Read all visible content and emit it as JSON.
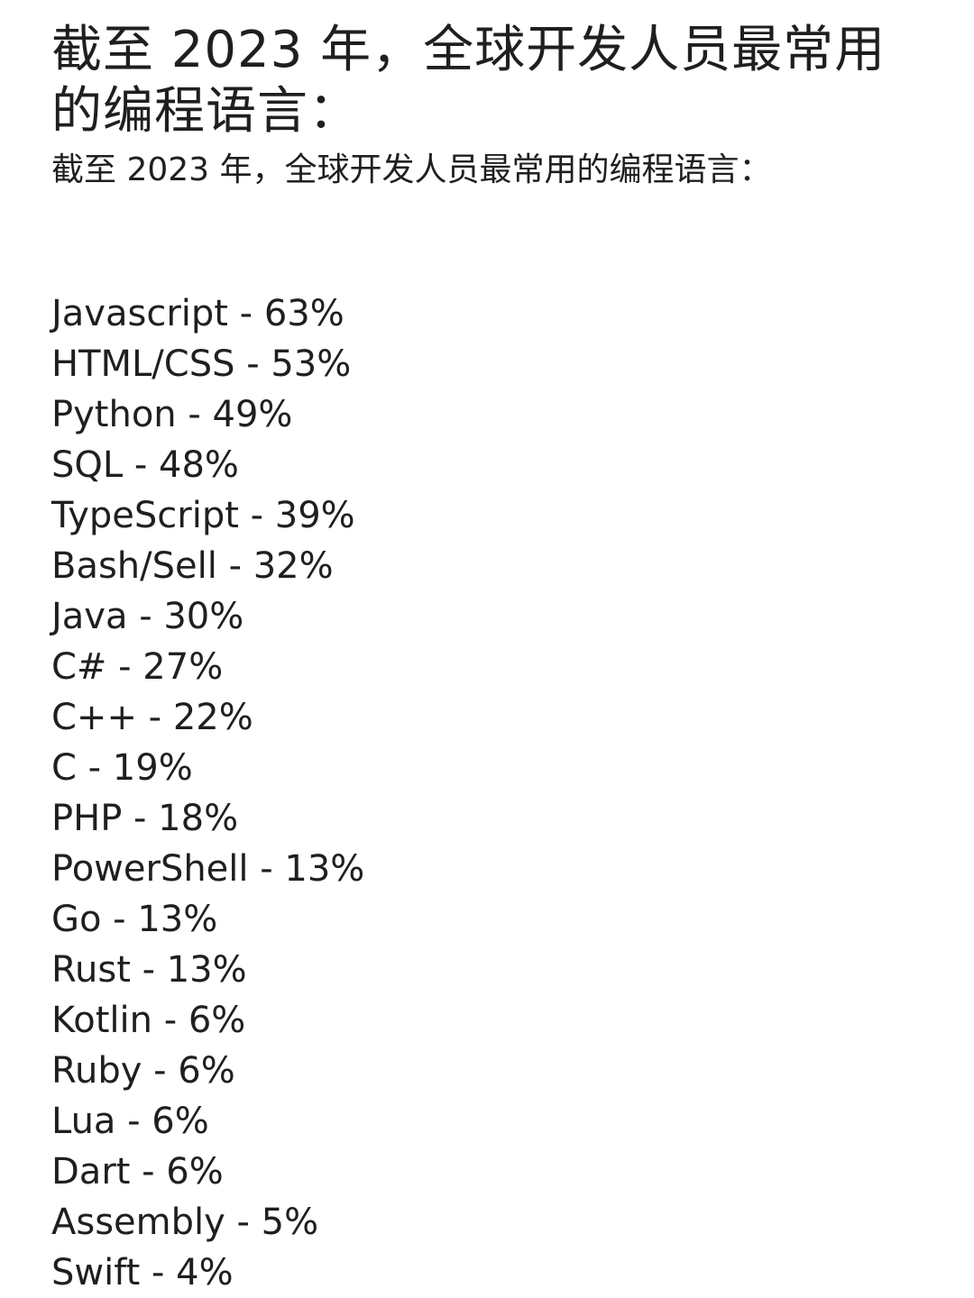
{
  "title": "截至 2023 年，全球开发人员最常用的编程语言：",
  "subtitle": "截至 2023 年，全球开发人员最常用的编程语言：",
  "languages": [
    "Javascript - 63%",
    "HTML/CSS - 53%",
    "Python - 49%",
    "SQL - 48%",
    "TypeScript - 39%",
    "Bash/Sell - 32%",
    "Java - 30%",
    "C# - 27%",
    "C++ - 22%",
    "C - 19%",
    "PHP - 18%",
    "PowerShell - 13%",
    "Go - 13%",
    "Rust - 13%",
    "Kotlin - 6%",
    "Ruby - 6%",
    "Lua - 6%",
    "Dart - 6%",
    "Assembly - 5%",
    "Swift - 4%"
  ]
}
